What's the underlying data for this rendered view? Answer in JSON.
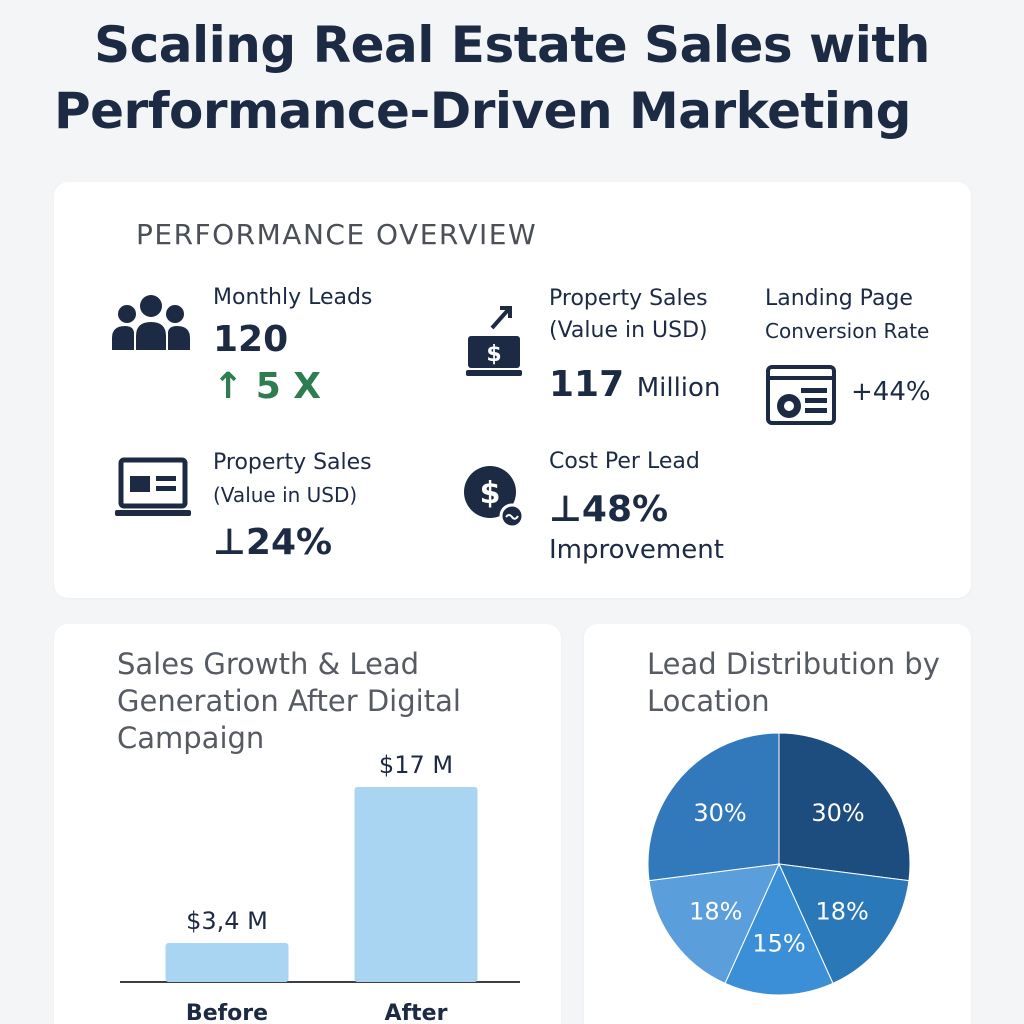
{
  "page": {
    "title_line1": "Scaling Real Estate Sales with",
    "title_line2": "Performance-Driven Marketing"
  },
  "overview": {
    "heading": "PERFORMANCE OVERVIEW",
    "metrics": [
      {
        "label": "Monthly Leads",
        "value": "120",
        "change": "↑ 5 X",
        "icon": "people-icon"
      },
      {
        "label_line1": "Property Sales",
        "label_line2": "(Value in USD)",
        "value": "117",
        "value_unit": "Million",
        "icon": "money-stack-icon"
      },
      {
        "label_line1": "Landing Page",
        "label_line2": "Conversion Rate",
        "value": "+44%",
        "icon": "landing-page-icon"
      },
      {
        "label_line1": "Property Sales",
        "label_line2": "(Value in USD)",
        "value": "⊥24%",
        "icon": "laptop-icon"
      },
      {
        "label": "Cost Per Lead",
        "value": "⊥48%",
        "note": "Improvement",
        "icon": "dollar-coin-icon"
      }
    ]
  },
  "colors": {
    "navy": "#1c2a44",
    "green": "#2e7d4f",
    "bar": "#a9d5f3",
    "pie": [
      "#1d4c7f",
      "#2b78b8",
      "#3b8fd6",
      "#5a9fdc",
      "#3279bb"
    ]
  },
  "chart_data": [
    {
      "type": "bar",
      "title": "Sales Growth & Lead Generation After Digital Campaign",
      "categories": [
        "Before",
        "After"
      ],
      "values": [
        3.4,
        17
      ],
      "data_labels": [
        "$3,4 M",
        "$17 M"
      ],
      "ylim": [
        0,
        19
      ],
      "grid": false
    },
    {
      "type": "pie",
      "title": "Lead Distribution by Location",
      "values": [
        30,
        18,
        15,
        18,
        30
      ],
      "labels": [
        "30%",
        "18%",
        "15%",
        "18%",
        "30%"
      ]
    }
  ]
}
